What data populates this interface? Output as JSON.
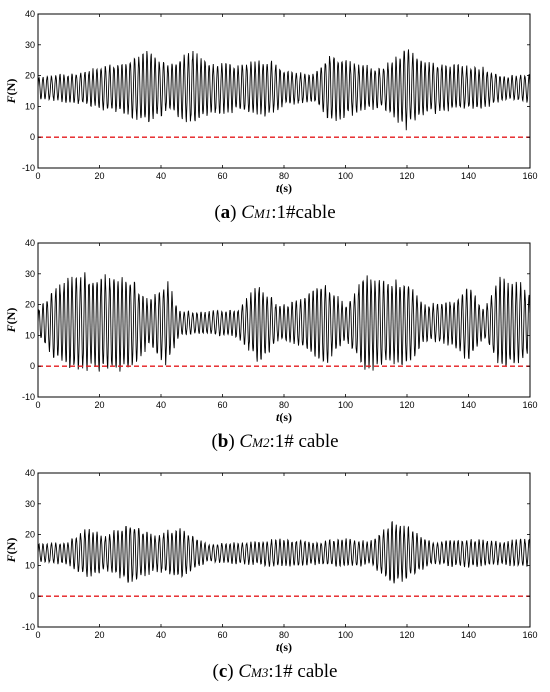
{
  "chart_data": [
    {
      "type": "line",
      "caption": {
        "letter": "a",
        "prefix": "C",
        "subscript": "M1",
        "suffix": ":1#cable"
      },
      "xlabel": {
        "italic": "t",
        "rest": "(s)"
      },
      "ylabel": {
        "italic": "F",
        "rest": "(N)"
      },
      "xlim": [
        0,
        160
      ],
      "ylim": [
        -10,
        40
      ],
      "xticks": [
        0,
        20,
        40,
        60,
        80,
        100,
        120,
        140,
        160
      ],
      "yticks": [
        -10,
        0,
        10,
        20,
        30,
        40
      ],
      "reference_line": {
        "y": 0,
        "color": "#e41a1c",
        "style": "dashed"
      },
      "series_color": "#000000",
      "signal": {
        "mean": 16,
        "envelope": [
          [
            0,
            4
          ],
          [
            10,
            5
          ],
          [
            20,
            7
          ],
          [
            30,
            10
          ],
          [
            36,
            13
          ],
          [
            42,
            8
          ],
          [
            50,
            13
          ],
          [
            56,
            9
          ],
          [
            65,
            8
          ],
          [
            75,
            10
          ],
          [
            80,
            6
          ],
          [
            90,
            5
          ],
          [
            95,
            12
          ],
          [
            105,
            8
          ],
          [
            112,
            7
          ],
          [
            120,
            14
          ],
          [
            126,
            9
          ],
          [
            135,
            8
          ],
          [
            145,
            7
          ],
          [
            152,
            4
          ],
          [
            160,
            5
          ]
        ]
      }
    },
    {
      "type": "line",
      "caption": {
        "letter": "b",
        "prefix": "C",
        "subscript": "M2",
        "suffix": ":1# cable"
      },
      "xlabel": {
        "italic": "t",
        "rest": "(s)"
      },
      "ylabel": {
        "italic": "F",
        "rest": "(N)"
      },
      "xlim": [
        0,
        160
      ],
      "ylim": [
        -10,
        40
      ],
      "xticks": [
        0,
        20,
        40,
        60,
        80,
        100,
        120,
        140,
        160
      ],
      "yticks": [
        -10,
        0,
        10,
        20,
        30,
        40
      ],
      "reference_line": {
        "y": 0,
        "color": "#e41a1c",
        "style": "dashed"
      },
      "series_color": "#000000",
      "signal": {
        "mean": 14,
        "envelope": [
          [
            0,
            5
          ],
          [
            5,
            12
          ],
          [
            10,
            16
          ],
          [
            20,
            17
          ],
          [
            30,
            16
          ],
          [
            36,
            8
          ],
          [
            42,
            15
          ],
          [
            46,
            4
          ],
          [
            55,
            4
          ],
          [
            65,
            5
          ],
          [
            72,
            14
          ],
          [
            78,
            6
          ],
          [
            85,
            8
          ],
          [
            93,
            15
          ],
          [
            100,
            6
          ],
          [
            106,
            17
          ],
          [
            112,
            14
          ],
          [
            120,
            15
          ],
          [
            126,
            6
          ],
          [
            135,
            8
          ],
          [
            140,
            13
          ],
          [
            145,
            5
          ],
          [
            150,
            16
          ],
          [
            157,
            14
          ],
          [
            160,
            10
          ]
        ]
      }
    },
    {
      "type": "line",
      "caption": {
        "letter": "c",
        "prefix": "C",
        "subscript": "M3",
        "suffix": ":1# cable"
      },
      "xlabel": {
        "italic": "t",
        "rest": "(s)"
      },
      "ylabel": {
        "italic": "F",
        "rest": "(N)"
      },
      "xlim": [
        0,
        160
      ],
      "ylim": [
        -10,
        40
      ],
      "xticks": [
        0,
        20,
        40,
        60,
        80,
        100,
        120,
        140,
        160
      ],
      "yticks": [
        -10,
        0,
        10,
        20,
        30,
        40
      ],
      "reference_line": {
        "y": 0,
        "color": "#e41a1c",
        "style": "dashed"
      },
      "series_color": "#000000",
      "signal": {
        "mean": 14,
        "envelope": [
          [
            0,
            3
          ],
          [
            10,
            4
          ],
          [
            16,
            9
          ],
          [
            22,
            6
          ],
          [
            30,
            11
          ],
          [
            38,
            6
          ],
          [
            46,
            9
          ],
          [
            55,
            3
          ],
          [
            70,
            4
          ],
          [
            80,
            5
          ],
          [
            90,
            4
          ],
          [
            100,
            5
          ],
          [
            108,
            4
          ],
          [
            115,
            11
          ],
          [
            120,
            9
          ],
          [
            128,
            4
          ],
          [
            140,
            5
          ],
          [
            150,
            4
          ],
          [
            160,
            5
          ]
        ]
      }
    }
  ]
}
